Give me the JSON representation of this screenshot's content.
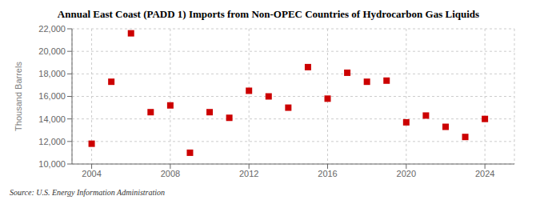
{
  "chart_data": {
    "type": "scatter",
    "title": "Annual East Coast (PADD 1) Imports from Non-OPEC Countries of Hydrocarbon Gas Liquids",
    "y_label": "Thousand Barrels",
    "annotations": [
      "Source: U.S. Energy Information Administration"
    ],
    "x": [
      2004,
      2005,
      2006,
      2007,
      2008,
      2009,
      2010,
      2011,
      2012,
      2013,
      2014,
      2015,
      2016,
      2017,
      2018,
      2019,
      2020,
      2021,
      2022,
      2023,
      2024
    ],
    "values": [
      11800,
      17300,
      21600,
      14600,
      15200,
      11000,
      14600,
      14100,
      16500,
      16000,
      15000,
      18600,
      15800,
      18100,
      17300,
      17400,
      13700,
      14300,
      13300,
      12400,
      14000
    ],
    "color": "#cc0000",
    "marker": "square",
    "xlim": [
      2003.0,
      2025.5
    ],
    "xticks": [
      2004,
      2008,
      2012,
      2016,
      2020,
      2024
    ],
    "ylim": [
      10000,
      22000
    ],
    "yticks": [
      {
        "value": 10000,
        "label": "10,000"
      },
      {
        "value": 12000,
        "label": "12,000"
      },
      {
        "value": 14000,
        "label": "14,000"
      },
      {
        "value": 16000,
        "label": "16,000"
      },
      {
        "value": 18000,
        "label": "18,000"
      },
      {
        "value": 20000,
        "label": "20,000"
      },
      {
        "value": 22000,
        "label": "22,000"
      }
    ],
    "grid": true
  }
}
